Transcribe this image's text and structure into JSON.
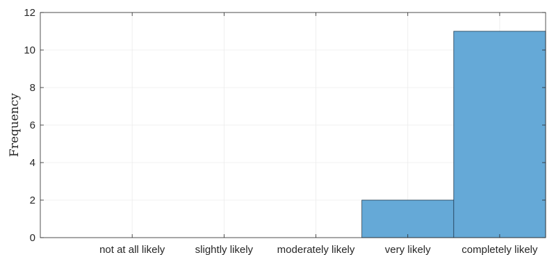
{
  "chart_data": {
    "type": "bar",
    "categories": [
      "not at all likely",
      "slightly likely",
      "moderately likely",
      "very likely",
      "completely likely"
    ],
    "values": [
      0,
      0,
      0,
      2,
      11
    ],
    "xlabel": "",
    "ylabel": "Frequency",
    "ylim": [
      0,
      12
    ],
    "yticks": [
      0,
      2,
      4,
      6,
      8,
      10,
      12
    ],
    "grid": true,
    "bar_color": "#65a9d7",
    "bar_edge_color": "#1f3b50"
  }
}
